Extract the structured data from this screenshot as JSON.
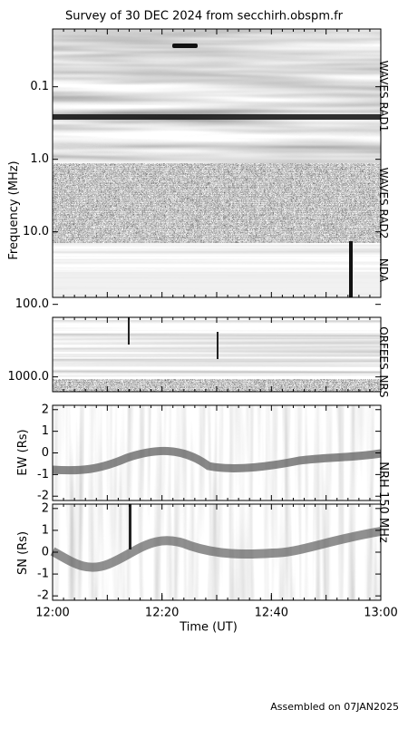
{
  "chart_data": [
    {
      "type": "spectrogram",
      "title": "Survey of 30 DEC 2024 from secchirh.obspm.fr",
      "y_label": "Frequency (MHz)",
      "log_y": true,
      "ylim": [
        0.016,
        1600
      ],
      "yticks": [
        0.1,
        {
          "value": 1,
          "label": "1.0"
        },
        {
          "value": 10,
          "label": "10.0"
        },
        {
          "value": 100,
          "label": "100.0"
        },
        {
          "value": 1000,
          "label": "1000.0"
        }
      ],
      "instruments": [
        "WAVES RAD1",
        "WAVES RAD2",
        "NDA",
        "ORFEES",
        "NRS"
      ]
    },
    {
      "type": "spectrogram",
      "y_label": "EW (Rs)",
      "ylim": [
        -2.2,
        2.2
      ],
      "yticks": [
        2,
        1,
        0,
        -1,
        -2
      ]
    },
    {
      "type": "spectrogram",
      "y_label": "SN (Rs)",
      "ylim": [
        -2.2,
        2.2
      ],
      "yticks": [
        2,
        1,
        0,
        -1,
        -2
      ],
      "instrument": "NRH 150 MHz",
      "x_label": "Time (UT)",
      "xlim": [
        "12:00",
        "13:00"
      ],
      "xticks": [
        "12:00",
        "12:20",
        "12:40",
        "13:00"
      ]
    }
  ],
  "footer": "Assembled on 07JAN2025"
}
